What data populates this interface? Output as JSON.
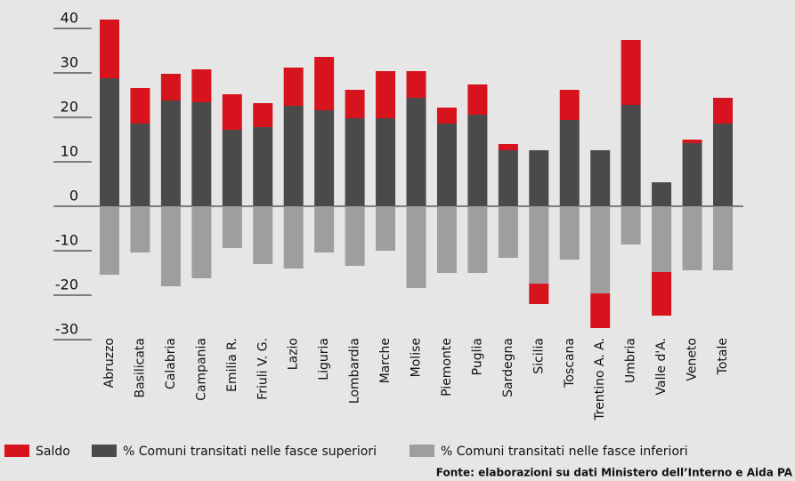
{
  "chart_data": {
    "type": "bar",
    "stacked": true,
    "categories": [
      "Abruzzo",
      "Basilicata",
      "Calabria",
      "Campania",
      "Emilia R.",
      "Friuli V. G.",
      "Lazio",
      "Liguria",
      "Lombardia",
      "Marche",
      "Molise",
      "Piemonte",
      "Puglia",
      "Sardegna",
      "Sicilia",
      "Toscana",
      "Trentino A. A.",
      "Umbria",
      "Valle d'A.",
      "Veneto",
      "Totale"
    ],
    "series": [
      {
        "name": "Saldo",
        "color": "#d7141d",
        "values": [
          13.2,
          8,
          6,
          7.4,
          8,
          5.4,
          8.6,
          12,
          6.4,
          10.6,
          6,
          3.6,
          6.8,
          1.4,
          -4.6,
          6.8,
          -7.8,
          14.6,
          -9.8,
          0.8,
          5.8
        ]
      },
      {
        "name": "% Comuni transitati nelle fasce superiori",
        "color": "#4a4a4a",
        "values": [
          28.8,
          18.6,
          23.8,
          23.4,
          17.2,
          17.8,
          22.6,
          21.6,
          19.8,
          19.8,
          24.4,
          18.6,
          20.6,
          12.6,
          12.6,
          19.4,
          12.6,
          22.8,
          5.4,
          14.2,
          18.6
        ]
      },
      {
        "name": "% Comuni transitati nelle fasce inferiori",
        "color": "#9e9e9e",
        "values": [
          -15.4,
          -10.4,
          -18,
          -16.2,
          -9.4,
          -13,
          -14,
          -10.4,
          -13.4,
          -10,
          -18.4,
          -15,
          -15,
          -11.6,
          -17.4,
          -12,
          -19.6,
          -8.6,
          -14.8,
          -14.4,
          -14.4
        ]
      }
    ],
    "ylim": [
      -31,
      43
    ],
    "yticks": [
      -30,
      -20,
      -10,
      0,
      10,
      20,
      30,
      40
    ],
    "source": "Fonte: elaborazioni su dati Ministero dell’Interno e Aida PA"
  }
}
